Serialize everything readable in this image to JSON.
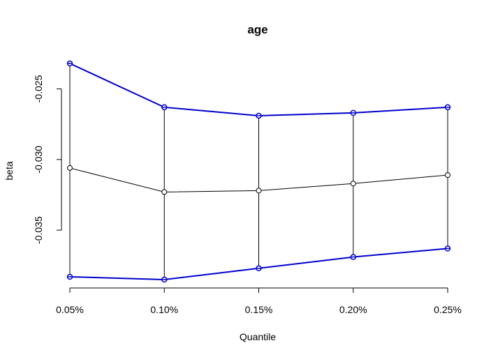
{
  "chart_data": {
    "type": "line",
    "title": "age",
    "xlabel": "Quantile",
    "ylabel": "beta",
    "categories": [
      "0.05%",
      "0.10%",
      "0.15%",
      "0.20%",
      "0.25%"
    ],
    "yticks": [
      "-0.025",
      "-0.030",
      "-0.035"
    ],
    "ytick_values": [
      -0.025,
      -0.03,
      -0.035
    ],
    "ylim": [
      -0.0385,
      -0.0232
    ],
    "grid": false,
    "series": [
      {
        "role": "estimate",
        "color": "#000000",
        "values": [
          -0.0306,
          -0.0323,
          -0.0322,
          -0.0317,
          -0.0311
        ]
      },
      {
        "role": "upper",
        "color": "#0000cc",
        "values": [
          -0.0232,
          -0.0263,
          -0.0269,
          -0.0267,
          -0.0263
        ]
      },
      {
        "role": "lower",
        "color": "#0000cc",
        "values": [
          -0.0383,
          -0.0385,
          -0.0377,
          -0.0369,
          -0.0363
        ]
      }
    ]
  }
}
